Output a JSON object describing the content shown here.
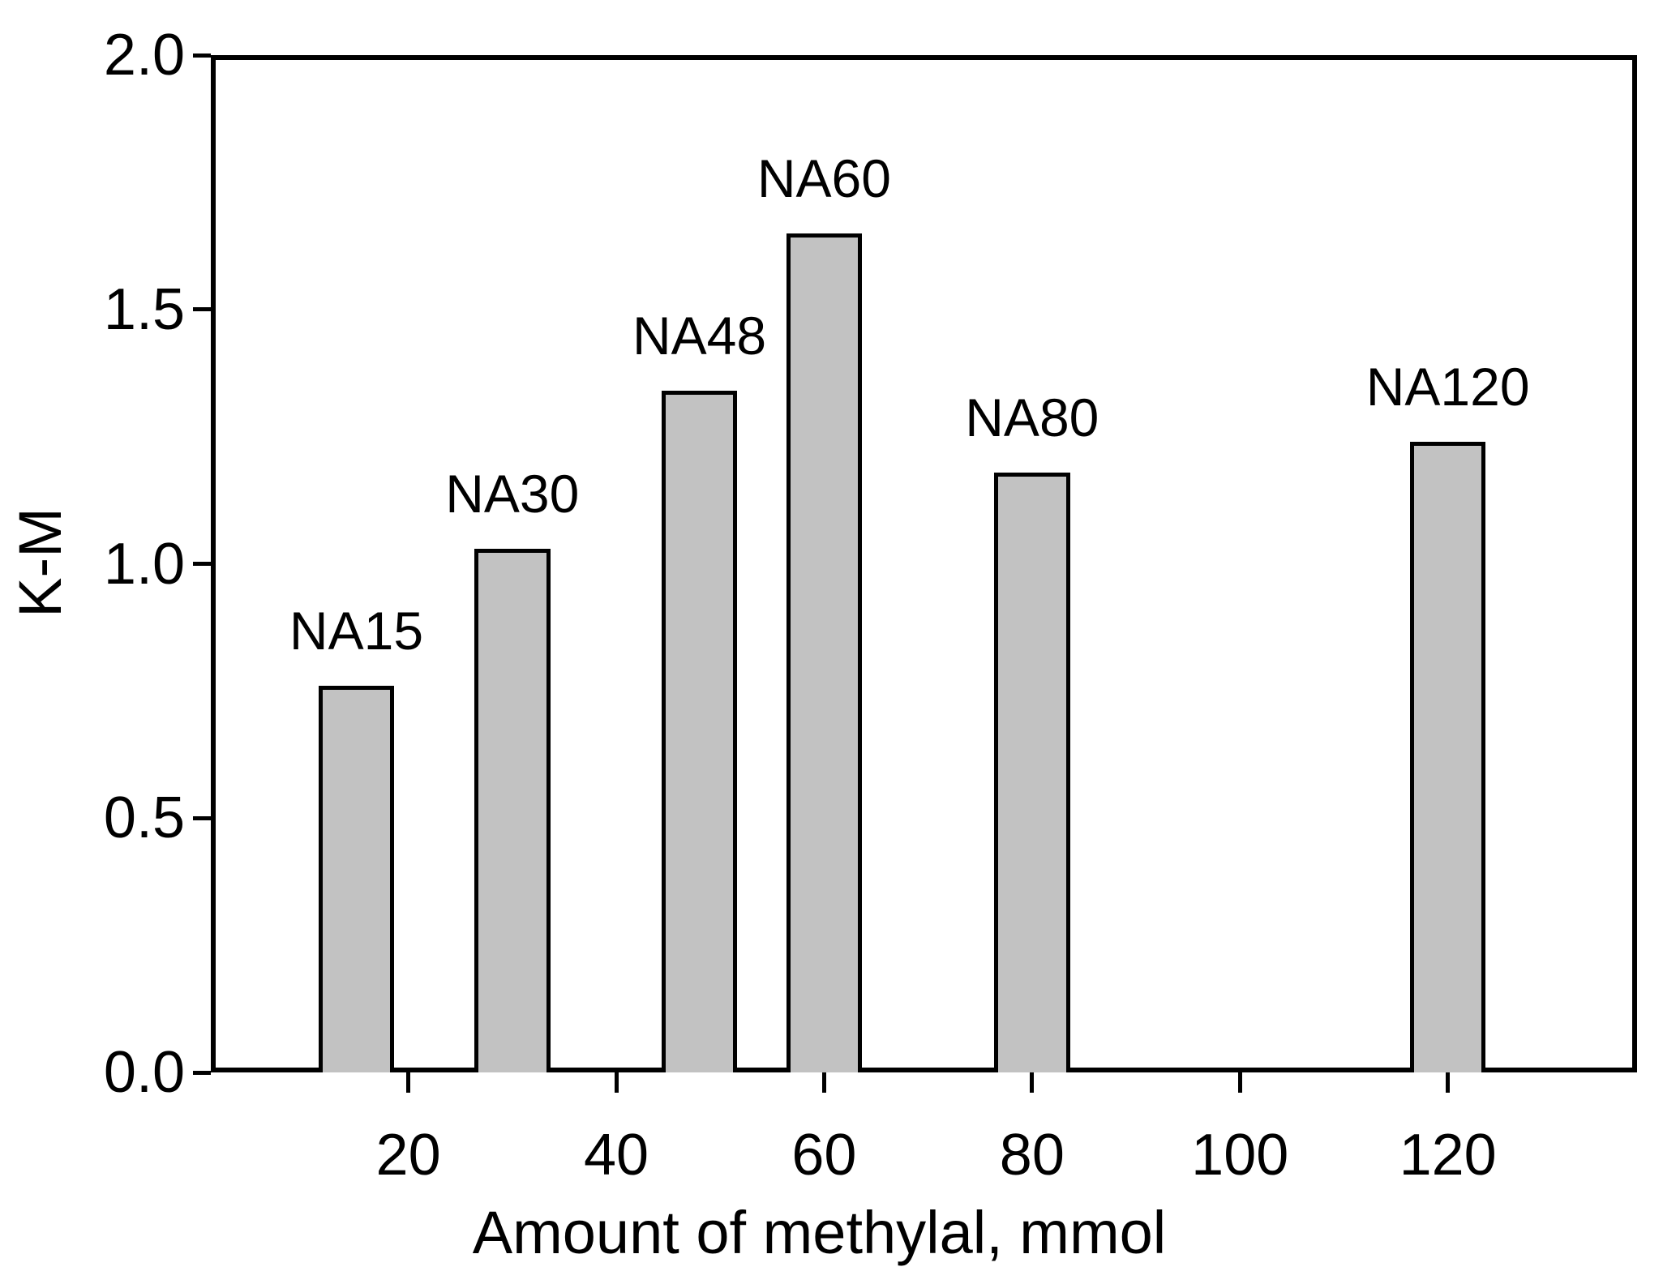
{
  "chart_data": {
    "type": "bar",
    "title": "",
    "xlabel": "Amount of methylal, mmol",
    "ylabel": "K-M",
    "categories": [
      "NA15",
      "NA30",
      "NA48",
      "NA60",
      "NA80",
      "NA120"
    ],
    "x": [
      15,
      30,
      48,
      60,
      80,
      120
    ],
    "values": [
      0.76,
      1.03,
      1.34,
      1.65,
      1.18,
      1.24
    ],
    "bar_labels": [
      "NA15",
      "NA30",
      "NA48",
      "NA60",
      "NA80",
      "NA120"
    ],
    "bar_width_x": 7.3,
    "xlim": [
      1.0,
      138.2
    ],
    "ylim": [
      0,
      2
    ],
    "x_ticks": [
      20,
      40,
      60,
      80,
      100,
      120
    ],
    "x_tick_labels": [
      "20",
      "40",
      "60",
      "80",
      "100",
      "120"
    ],
    "y_ticks": [
      0.0,
      0.5,
      1.0,
      1.5,
      2.0
    ],
    "y_tick_labels": [
      "0.0",
      "0.5",
      "1.0",
      "1.5",
      "2.0"
    ],
    "grid": false,
    "legend": false,
    "colors": {
      "bar_fill": "#c2c2c2",
      "bar_stroke": "#000000",
      "axis": "#000000",
      "text": "#000000",
      "background": "#ffffff"
    }
  }
}
